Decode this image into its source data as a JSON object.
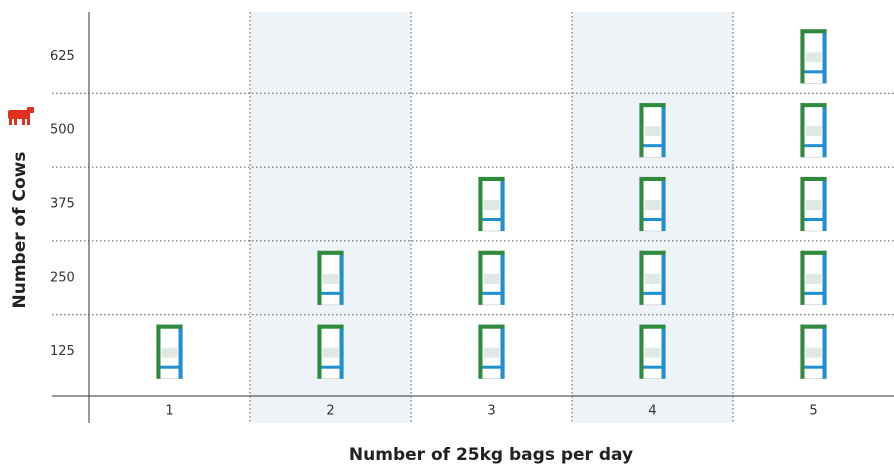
{
  "chart_data": {
    "type": "pictogram",
    "x_label": "Number of 25kg bags per day",
    "y_label": "Number of Cows",
    "categories": [
      1,
      2,
      3,
      4,
      5
    ],
    "values": [
      125,
      250,
      375,
      500,
      625
    ],
    "ylim": [
      50,
      700
    ],
    "yticks": [
      125,
      250,
      375,
      500,
      625
    ],
    "shaded_columns": [
      2,
      4
    ],
    "color": "#2e8b3e"
  }
}
